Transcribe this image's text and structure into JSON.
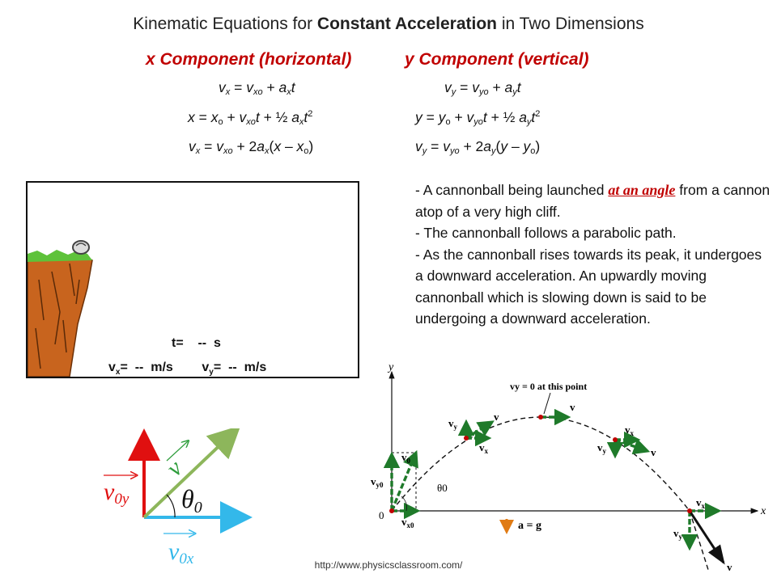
{
  "title": {
    "prefix": "Kinematic Equations for ",
    "bold": "Constant Acceleration",
    "suffix": " in Two Dimensions"
  },
  "x_column_heading": "x Component (horizontal)",
  "y_column_heading": "y Component (vertical)",
  "description": {
    "line1_before": "- A cannonball being launched ",
    "line1_emph": "at an angle",
    "line1_after": " from a cannon atop of a very high cliff.",
    "line2": "- The cannonball follows a parabolic path.",
    "line3": "- As the cannonball rises towards its peak, it undergoes a downward acceleration. An upwardly moving cannonball which is slowing down is said to be undergoing a downward acceleration."
  },
  "animation": {
    "time_label": "t=",
    "time_value": "--",
    "time_unit": "s",
    "vx_label": "vx=",
    "vx_value": "--",
    "vx_unit": "m/s",
    "vy_label": "vy=",
    "vy_value": "--",
    "vy_unit": "m/s"
  },
  "vector_diagram": {
    "v_label": "v",
    "v0y_label": "v0y",
    "v0x_label": "v0x",
    "theta_label": "θ0",
    "colors": {
      "v": "#8db65b",
      "v0y": "#e01010",
      "v0x": "#33b8ea"
    }
  },
  "trajectory_diagram": {
    "y_axis": "y",
    "x_axis": "x",
    "origin": "0",
    "peak_note": "vy = 0 at this point",
    "acceleration": "a = g",
    "theta": "θ0",
    "labels": [
      "vy0",
      "v0",
      "vx0",
      "vy",
      "vx",
      "v"
    ]
  },
  "source_url": "http://www.physicsclassroom.com/"
}
